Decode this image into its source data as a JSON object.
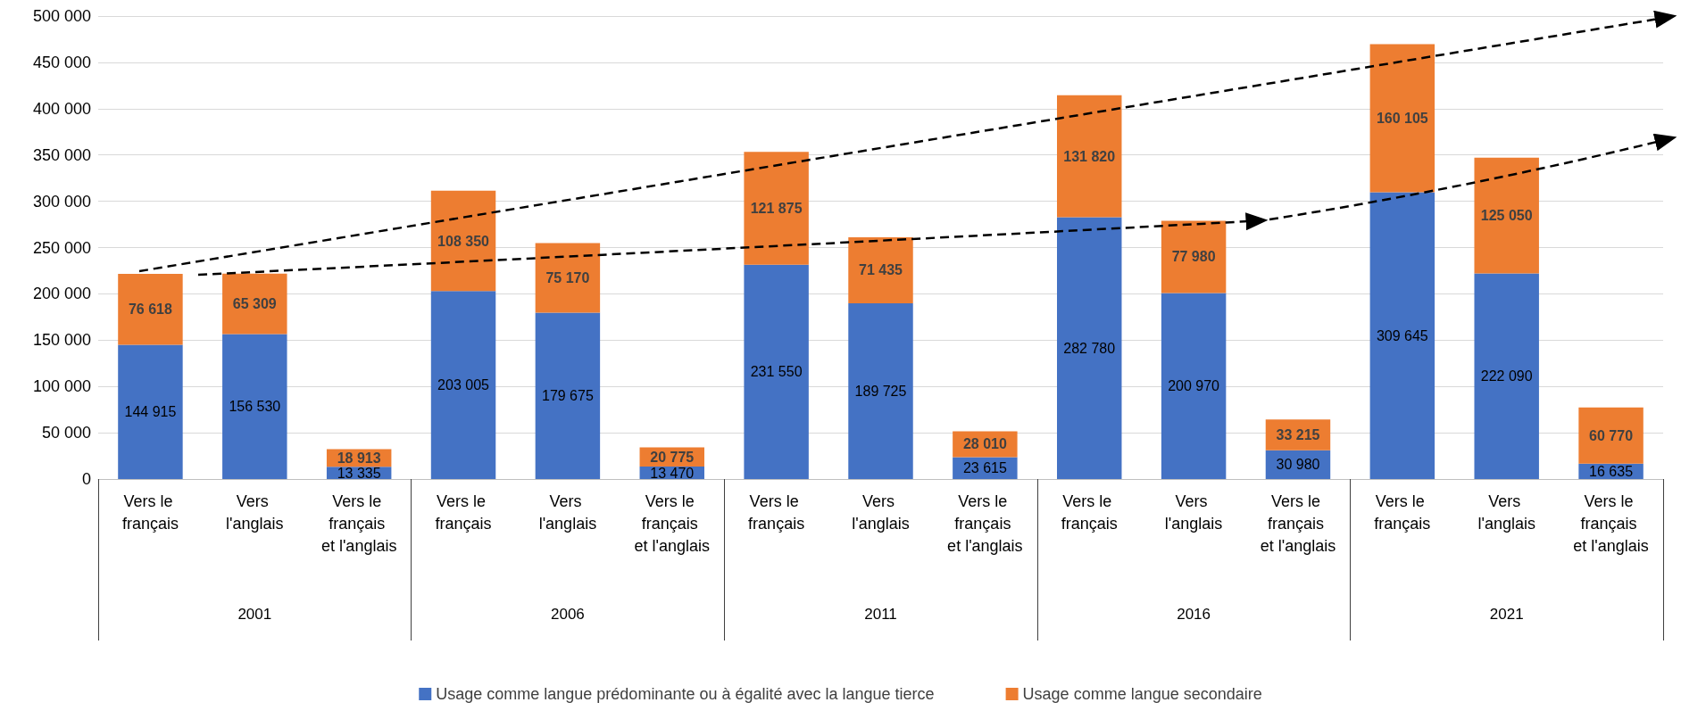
{
  "chart_data": {
    "type": "bar",
    "stacked": true,
    "categories": [
      "Vers le français",
      "Vers l'anglais",
      "Vers le français et l'anglais",
      "Vers le français",
      "Vers l'anglais",
      "Vers le français et l'anglais",
      "Vers le français",
      "Vers l'anglais",
      "Vers le français et l'anglais",
      "Vers le français",
      "Vers l'anglais",
      "Vers le français et l'anglais",
      "Vers le français",
      "Vers l'anglais",
      "Vers le français et l'anglais"
    ],
    "annotations": [
      "2001",
      "2006",
      "2011",
      "2016",
      "2021"
    ],
    "series": [
      {
        "name": "Usage comme langue prédominante ou à égalité avec la langue tierce",
        "color": "#4472c4",
        "values": [
          144915,
          156530,
          13335,
          203005,
          179675,
          13470,
          231550,
          189725,
          23615,
          282780,
          200970,
          30980,
          309645,
          222090,
          16635
        ]
      },
      {
        "name": "Usage comme langue secondaire",
        "color": "#ed7d31",
        "values": [
          76618,
          65309,
          18913,
          108350,
          75170,
          20775,
          121875,
          71435,
          28010,
          131820,
          77980,
          33215,
          160105,
          125050,
          60770
        ]
      }
    ],
    "ylim": [
      0,
      500000
    ],
    "yticks": [
      0,
      50000,
      100000,
      150000,
      200000,
      250000,
      300000,
      350000,
      400000,
      450000,
      500000
    ],
    "grid": "y",
    "legend": "bottom",
    "data_labels": true
  }
}
